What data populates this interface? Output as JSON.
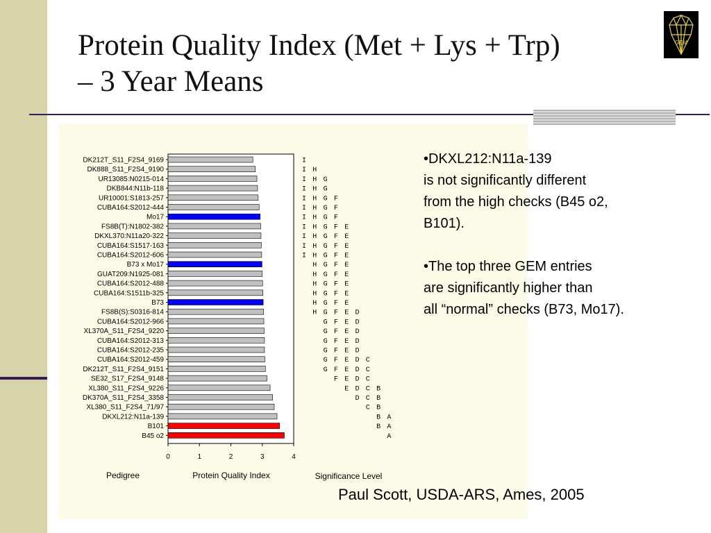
{
  "slide": {
    "title_line1": "Protein Quality Index (Met + Lys + Trp)",
    "title_line2": "– 3 Year Means",
    "logo_text": "GEM",
    "credit": "Paul Scott, USDA-ARS, Ames, 2005"
  },
  "notes": [
    "•DKXL212:N11a-139\nis not significantly different\nfrom the high checks (B45 o2,\nB101).",
    "•The top three GEM entries\nare significantly higher than\nall “normal” checks (B73, Mo17)."
  ],
  "colors": {
    "normal_bar": "#c0c0c0",
    "check_normal": "#0000ff",
    "check_high": "#ff0000"
  },
  "chart_data": {
    "type": "bar",
    "orientation": "horizontal",
    "xlabel": "Protein Quality Index",
    "ylabel": "Pedigree",
    "sig_label": "Significance Level",
    "xlim": [
      0,
      4
    ],
    "xticks": [
      "0",
      "1",
      "2",
      "3",
      "4"
    ],
    "categories": [
      "DK212T_S11_F2S4_9169",
      "DK888_S11_F2S4_9190",
      "UR13085:N0215-014",
      "DKB844:N11b-118",
      "UR10001:S1813-257",
      "CUBA164:S2012-444",
      "Mo17",
      "FS8B(T):N1802-382",
      "DKXL370:N11a20-322",
      "CUBA164:S1517-163",
      "CUBA164:S2012-606",
      "B73 x Mo17",
      "GUAT209:N1925-081",
      "CUBA164:S2012-488",
      "CUBA164:S1511b-325",
      "B73",
      "FS8B(S):S0316-814",
      "CUBA164:S2012-966",
      "XL370A_S11_F2S4_9220",
      "CUBA164:S2012-313",
      "CUBA164:S2012-235",
      "CUBA164:S2012-459",
      "DK212T_S11_F2S4_9151",
      "SE32_S17_F2S4_9148",
      "XL380_S11_F2S4_9226",
      "DK370A_S11_F2S4_3358",
      "XL380_S11_F2S4_71/97",
      "DKXL212:N11a-139",
      "B101",
      "B45 o2"
    ],
    "values": [
      2.7,
      2.78,
      2.83,
      2.85,
      2.87,
      2.9,
      2.93,
      2.95,
      2.96,
      2.97,
      2.98,
      2.99,
      3.0,
      3.01,
      3.02,
      3.03,
      3.04,
      3.05,
      3.06,
      3.07,
      3.07,
      3.08,
      3.1,
      3.15,
      3.25,
      3.33,
      3.38,
      3.47,
      3.55,
      3.7
    ],
    "bar_type": [
      "normal",
      "normal",
      "normal",
      "normal",
      "normal",
      "normal",
      "check_normal",
      "normal",
      "normal",
      "normal",
      "normal",
      "check_normal",
      "normal",
      "normal",
      "normal",
      "check_normal",
      "normal",
      "normal",
      "normal",
      "normal",
      "normal",
      "normal",
      "normal",
      "normal",
      "normal",
      "normal",
      "normal",
      "normal",
      "check_high",
      "check_high"
    ],
    "sig_columns": [
      "I",
      "H",
      "G",
      "F",
      "E",
      "D",
      "C",
      "B",
      "A"
    ],
    "significance": [
      "I",
      "I H",
      "I H G",
      "I H G",
      "I H G F",
      "I H G F",
      "I H G F",
      "I H G F E",
      "I H G F E",
      "I H G F E",
      "I H G F E",
      "H G F E",
      "H G F E",
      "H G F E",
      "H G F E",
      "H G F E",
      "H G F E D",
      "G F E D",
      "G F E D",
      "G F E D",
      "G F E D",
      "G F E D C",
      "G F E D C",
      "F E D C",
      "E D C B",
      "D C B",
      "C B",
      "B A",
      "B A",
      "A"
    ]
  }
}
